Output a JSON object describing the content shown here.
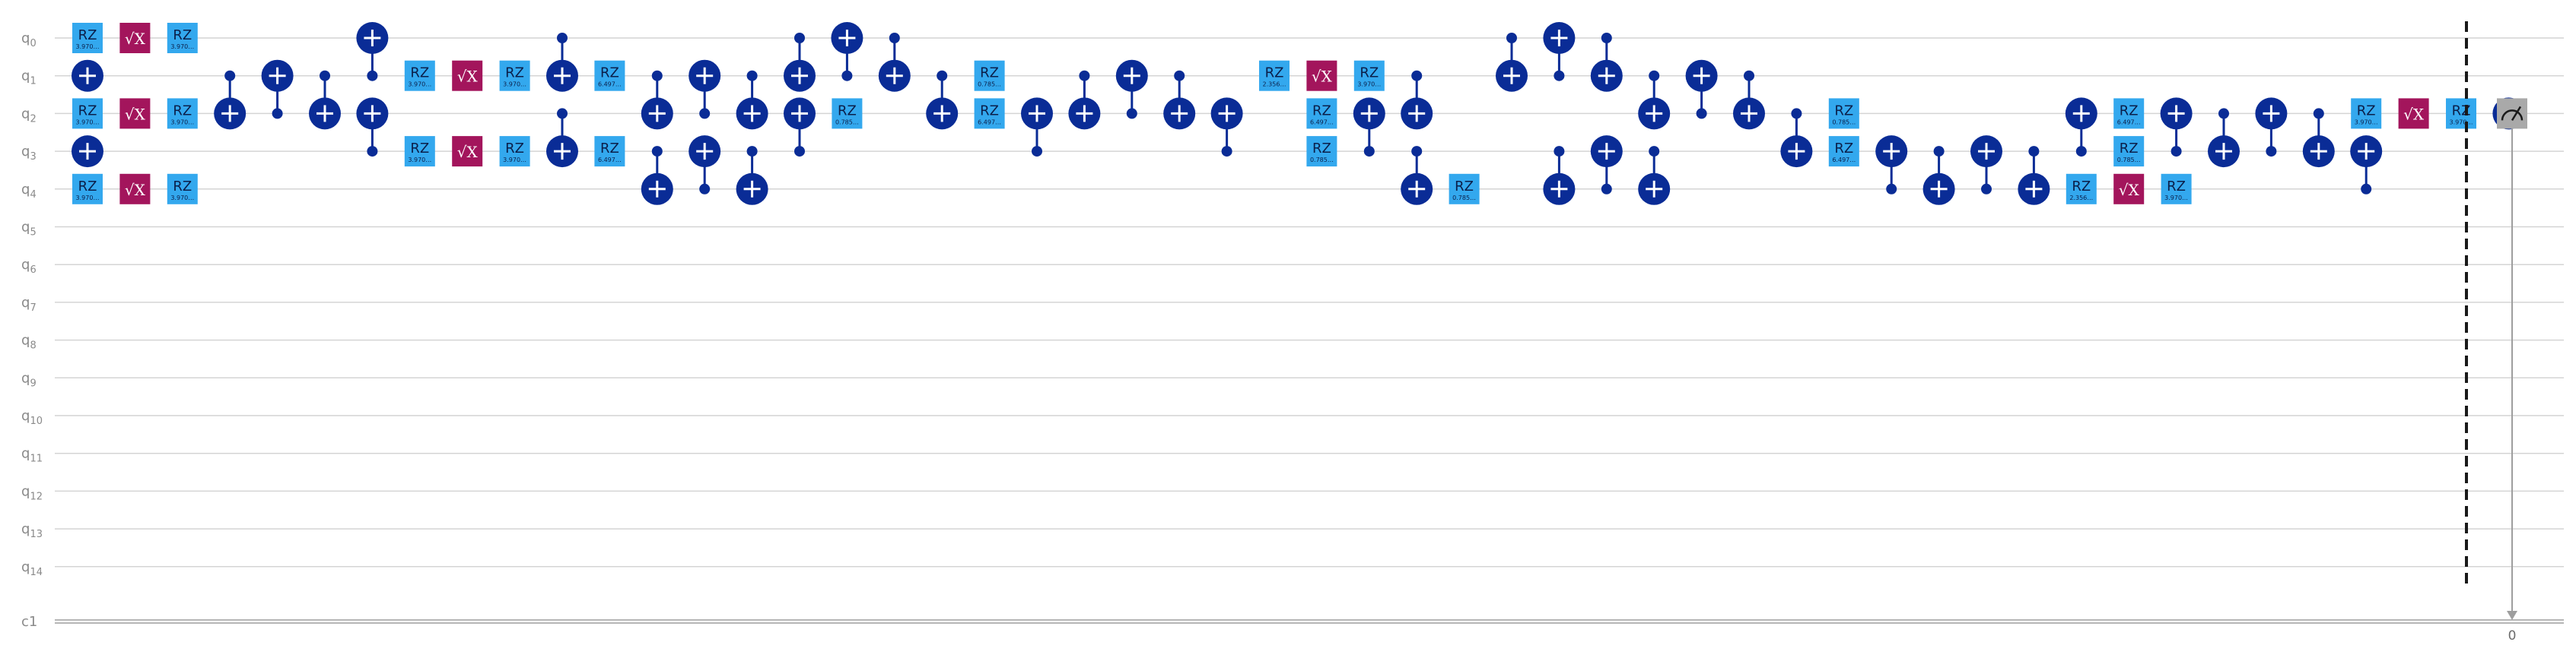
{
  "diagram": {
    "qubit_labels": [
      "q0",
      "q1",
      "q2",
      "q3",
      "q4",
      "q5",
      "q6",
      "q7",
      "q8",
      "q9",
      "q10",
      "q11",
      "q12",
      "q13",
      "q14"
    ],
    "classical_label": "c1",
    "colors": {
      "rz": "#33a8ee",
      "sx": "#a3155c",
      "cx": "#0a2c96",
      "measure": "#a9a9a9"
    },
    "gate_labels": {
      "rz": "RZ",
      "sx": "√X"
    },
    "gates": [
      {
        "type": "rz",
        "col": 0,
        "q": 0,
        "param": "3.970…"
      },
      {
        "type": "cx",
        "col": 0,
        "target": 1,
        "controls": []
      },
      {
        "type": "rz",
        "col": 0,
        "q": 2,
        "param": "3.970…"
      },
      {
        "type": "cx",
        "col": 0,
        "target": 3,
        "controls": []
      },
      {
        "type": "rz",
        "col": 0,
        "q": 4,
        "param": "3.970…"
      },
      {
        "type": "sx",
        "col": 1,
        "q": 0
      },
      {
        "type": "sx",
        "col": 1,
        "q": 2
      },
      {
        "type": "sx",
        "col": 1,
        "q": 4
      },
      {
        "type": "rz",
        "col": 2,
        "q": 0,
        "param": "3.970…"
      },
      {
        "type": "rz",
        "col": 2,
        "q": 2,
        "param": "3.970…"
      },
      {
        "type": "rz",
        "col": 2,
        "q": 4,
        "param": "3.970…"
      },
      {
        "type": "cx",
        "col": 3,
        "target": 2,
        "controls": [
          1
        ]
      },
      {
        "type": "cx",
        "col": 4,
        "target": 1,
        "controls": [
          2
        ]
      },
      {
        "type": "cx",
        "col": 5,
        "target": 2,
        "controls": [
          1
        ]
      },
      {
        "type": "cx",
        "col": 6,
        "target": 0,
        "controls": [
          1
        ]
      },
      {
        "type": "cx",
        "col": 6,
        "target": 2,
        "controls": [
          3
        ]
      },
      {
        "type": "rz",
        "col": 7,
        "q": 1,
        "param": "3.970…"
      },
      {
        "type": "rz",
        "col": 7,
        "q": 3,
        "param": "3.970…"
      },
      {
        "type": "sx",
        "col": 8,
        "q": 1
      },
      {
        "type": "sx",
        "col": 8,
        "q": 3
      },
      {
        "type": "rz",
        "col": 9,
        "q": 1,
        "param": "3.970…"
      },
      {
        "type": "rz",
        "col": 9,
        "q": 3,
        "param": "3.970…"
      },
      {
        "type": "cx",
        "col": 10,
        "target": 1,
        "controls": [
          0
        ]
      },
      {
        "type": "cx",
        "col": 10,
        "target": 3,
        "controls": [
          2
        ]
      },
      {
        "type": "rz",
        "col": 11,
        "q": 1,
        "param": "6.497…"
      },
      {
        "type": "rz",
        "col": 11,
        "q": 3,
        "param": "6.497…"
      },
      {
        "type": "cx",
        "col": 12,
        "target": 2,
        "controls": [
          1
        ]
      },
      {
        "type": "cx",
        "col": 12,
        "target": 4,
        "controls": [
          3
        ]
      },
      {
        "type": "cx",
        "col": 13,
        "target": 1,
        "controls": [
          2
        ]
      },
      {
        "type": "cx",
        "col": 13,
        "target": 3,
        "controls": [
          4
        ]
      },
      {
        "type": "cx",
        "col": 14,
        "target": 2,
        "controls": [
          1
        ]
      },
      {
        "type": "cx",
        "col": 14,
        "target": 4,
        "controls": [
          3
        ]
      },
      {
        "type": "cx",
        "col": 15,
        "target": 1,
        "controls": [
          0
        ]
      },
      {
        "type": "cx",
        "col": 15,
        "target": 2,
        "controls": [
          3
        ]
      },
      {
        "type": "cx",
        "col": 16,
        "target": 0,
        "controls": [
          1
        ]
      },
      {
        "type": "rz",
        "col": 16,
        "q": 2,
        "param": "0.785…"
      },
      {
        "type": "cx",
        "col": 17,
        "target": 1,
        "controls": [
          0
        ]
      },
      {
        "type": "cx",
        "col": 18,
        "target": 2,
        "controls": [
          1
        ]
      },
      {
        "type": "rz",
        "col": 19,
        "q": 1,
        "param": "0.785…"
      },
      {
        "type": "rz",
        "col": 19,
        "q": 2,
        "param": "6.497…"
      },
      {
        "type": "cx",
        "col": 20,
        "target": 2,
        "controls": [
          3
        ]
      },
      {
        "type": "cx",
        "col": 21,
        "target": 2,
        "controls": [
          1
        ]
      },
      {
        "type": "cx",
        "col": 22,
        "target": 1,
        "controls": [
          2
        ]
      },
      {
        "type": "cx",
        "col": 23,
        "target": 2,
        "controls": [
          1
        ]
      },
      {
        "type": "cx",
        "col": 24,
        "target": 2,
        "controls": [
          3
        ]
      },
      {
        "type": "rz",
        "col": 25,
        "q": 1,
        "param": "2.356…"
      },
      {
        "type": "sx",
        "col": 26,
        "q": 1
      },
      {
        "type": "rz",
        "col": 26,
        "q": 2,
        "param": "6.497…"
      },
      {
        "type": "rz",
        "col": 26,
        "q": 3,
        "param": "0.785…"
      },
      {
        "type": "rz",
        "col": 27,
        "q": 1,
        "param": "3.970…"
      },
      {
        "type": "cx",
        "col": 27,
        "target": 2,
        "controls": [
          3
        ]
      },
      {
        "type": "cx",
        "col": 28,
        "target": 2,
        "controls": [
          1
        ]
      },
      {
        "type": "cx",
        "col": 28,
        "target": 4,
        "controls": [
          3
        ]
      },
      {
        "type": "rz",
        "col": 29,
        "q": 4,
        "param": "0.785…"
      },
      {
        "type": "cx",
        "col": 30,
        "target": 1,
        "controls": [
          0
        ]
      },
      {
        "type": "cx",
        "col": 31,
        "target": 0,
        "controls": [
          1
        ]
      },
      {
        "type": "cx",
        "col": 31,
        "target": 4,
        "controls": [
          3
        ]
      },
      {
        "type": "cx",
        "col": 32,
        "target": 1,
        "controls": [
          0
        ]
      },
      {
        "type": "cx",
        "col": 32,
        "target": 3,
        "controls": [
          4
        ]
      },
      {
        "type": "cx",
        "col": 33,
        "target": 2,
        "controls": [
          1
        ]
      },
      {
        "type": "cx",
        "col": 33,
        "target": 4,
        "controls": [
          3
        ]
      },
      {
        "type": "cx",
        "col": 34,
        "target": 1,
        "controls": [
          2
        ]
      },
      {
        "type": "cx",
        "col": 35,
        "target": 2,
        "controls": [
          1
        ]
      },
      {
        "type": "cx",
        "col": 36,
        "target": 3,
        "controls": [
          2
        ]
      },
      {
        "type": "rz",
        "col": 37,
        "q": 2,
        "param": "0.785…"
      },
      {
        "type": "rz",
        "col": 37,
        "q": 3,
        "param": "6.497…"
      },
      {
        "type": "cx",
        "col": 38,
        "target": 3,
        "controls": [
          4
        ]
      },
      {
        "type": "cx",
        "col": 39,
        "target": 4,
        "controls": [
          3
        ]
      },
      {
        "type": "cx",
        "col": 40,
        "target": 3,
        "controls": [
          4
        ]
      },
      {
        "type": "cx",
        "col": 41,
        "target": 4,
        "controls": [
          3
        ]
      },
      {
        "type": "cx",
        "col": 42,
        "target": 2,
        "controls": [
          3
        ]
      },
      {
        "type": "rz",
        "col": 42,
        "q": 4,
        "param": "2.356…"
      },
      {
        "type": "rz",
        "col": 43,
        "q": 2,
        "param": "6.497…"
      },
      {
        "type": "rz",
        "col": 43,
        "q": 3,
        "param": "0.785…"
      },
      {
        "type": "sx",
        "col": 43,
        "q": 4
      },
      {
        "type": "cx",
        "col": 44,
        "target": 2,
        "controls": [
          3
        ]
      },
      {
        "type": "rz",
        "col": 44,
        "q": 4,
        "param": "3.970…"
      },
      {
        "type": "cx",
        "col": 45,
        "target": 3,
        "controls": [
          2
        ]
      },
      {
        "type": "cx",
        "col": 46,
        "target": 2,
        "controls": [
          3
        ]
      },
      {
        "type": "cx",
        "col": 47,
        "target": 3,
        "controls": [
          2
        ]
      },
      {
        "type": "rz",
        "col": 48,
        "q": 2,
        "param": "3.970…"
      },
      {
        "type": "cx",
        "col": 48,
        "target": 3,
        "controls": [
          4
        ]
      },
      {
        "type": "sx",
        "col": 49,
        "q": 2
      },
      {
        "type": "rz",
        "col": 50,
        "q": 2,
        "param": "3.970…"
      },
      {
        "type": "cx",
        "col": 51,
        "target": 2,
        "controls": []
      }
    ],
    "measure": {
      "qubit": 2,
      "bit_label": "0"
    }
  }
}
